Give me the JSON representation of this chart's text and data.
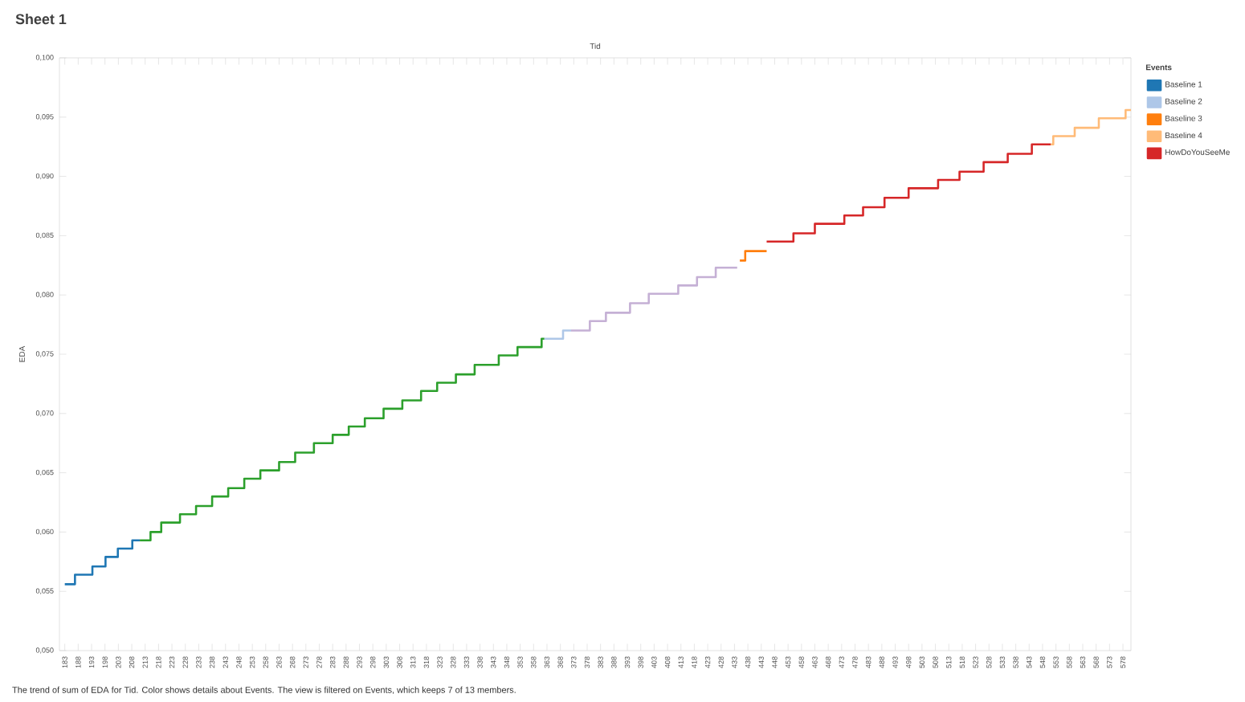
{
  "chart_data": {
    "type": "step",
    "title": "Sheet 1",
    "xlabel": "Tid",
    "ylabel": "EDA",
    "legend_title": "Events",
    "legend": "right",
    "annotations": [
      "The trend of sum of EDA for Tid.  Color shows details about Events. The view is filtered on Events, which keeps 7 of 13 members."
    ],
    "xlim": [
      181,
      581
    ],
    "xticks": [
      183,
      188,
      193,
      198,
      203,
      208,
      213,
      218,
      223,
      228,
      233,
      238,
      243,
      248,
      253,
      258,
      263,
      268,
      273,
      278,
      283,
      288,
      293,
      298,
      303,
      308,
      313,
      318,
      323,
      328,
      333,
      338,
      343,
      348,
      353,
      358,
      363,
      368,
      373,
      378,
      383,
      388,
      393,
      398,
      403,
      408,
      413,
      418,
      423,
      428,
      433,
      438,
      443,
      448,
      453,
      458,
      463,
      468,
      473,
      478,
      483,
      488,
      493,
      498,
      503,
      508,
      513,
      518,
      523,
      528,
      533,
      538,
      543,
      548,
      553,
      558,
      563,
      568,
      573,
      578
    ],
    "ylim": [
      0.05,
      0.1
    ],
    "yticks": [
      {
        "value": 0.05,
        "label": "0,050"
      },
      {
        "value": 0.055,
        "label": "0,055"
      },
      {
        "value": 0.06,
        "label": "0,060"
      },
      {
        "value": 0.065,
        "label": "0,065"
      },
      {
        "value": 0.07,
        "label": "0,070"
      },
      {
        "value": 0.075,
        "label": "0,075"
      },
      {
        "value": 0.08,
        "label": "0,080"
      },
      {
        "value": 0.085,
        "label": "0,085"
      },
      {
        "value": 0.09,
        "label": "0,090"
      },
      {
        "value": 0.095,
        "label": "0,095"
      },
      {
        "value": 0.1,
        "label": "0,100"
      }
    ],
    "series": [
      {
        "name": "Baseline 1",
        "color": "#1f77b4",
        "x": [
          183,
          186.8,
          193.3,
          198.2,
          202.8,
          208.2,
          211
        ],
        "values": [
          0.0556,
          0.0564,
          0.0571,
          0.0579,
          0.0586,
          0.0593,
          0.0593
        ]
      },
      {
        "name": "Baseline 2",
        "color": "#aec7e8",
        "x": [
          362,
          369,
          372
        ],
        "values": [
          0.0763,
          0.077,
          0.077
        ]
      },
      {
        "name": "Baseline 3",
        "color": "#ff7f0e",
        "x": [
          435,
          437,
          445
        ],
        "values": [
          0.0829,
          0.0837,
          0.0837
        ]
      },
      {
        "name": "Baseline 4",
        "color": "#ffbb78",
        "x": [
          551,
          552,
          560,
          569,
          579,
          581
        ],
        "values": [
          0.0927,
          0.0934,
          0.0941,
          0.0949,
          0.0956,
          0.0956
        ]
      },
      {
        "color": "#2ca02c",
        "x": [
          211,
          215,
          219,
          226,
          232,
          238,
          244,
          250,
          256,
          263,
          269,
          276,
          283,
          289,
          295,
          302,
          309,
          316,
          322,
          329,
          336,
          345,
          352,
          361,
          362
        ],
        "values": [
          0.0593,
          0.06,
          0.0608,
          0.0615,
          0.0622,
          0.063,
          0.0637,
          0.0645,
          0.0652,
          0.0659,
          0.0667,
          0.0675,
          0.0682,
          0.0689,
          0.0696,
          0.0704,
          0.0711,
          0.0719,
          0.0726,
          0.0733,
          0.0741,
          0.0749,
          0.0756,
          0.0763,
          0.0763
        ]
      },
      {
        "name": "HowDoYouSeeMe",
        "color": "#d62728",
        "x": [
          445,
          455,
          463,
          474,
          481,
          489,
          498,
          509,
          517,
          526,
          535,
          544,
          551
        ],
        "values": [
          0.0845,
          0.0852,
          0.086,
          0.0867,
          0.0874,
          0.0882,
          0.089,
          0.0897,
          0.0904,
          0.0912,
          0.0919,
          0.0927,
          0.0927
        ]
      },
      {
        "color": "#c5b0d5",
        "x": [
          372,
          379,
          385,
          394,
          401,
          412,
          419,
          426,
          434
        ],
        "values": [
          0.077,
          0.0778,
          0.0785,
          0.0793,
          0.0801,
          0.0808,
          0.0815,
          0.0823,
          0.0823
        ]
      }
    ]
  }
}
